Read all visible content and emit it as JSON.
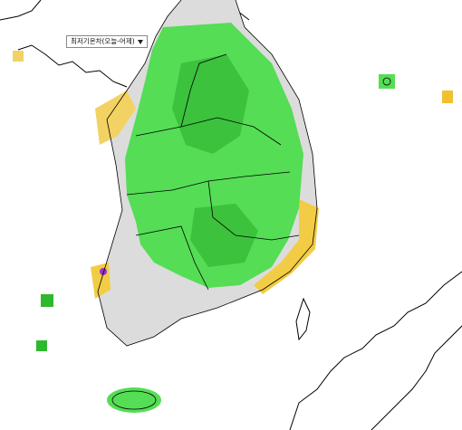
{
  "dropdown": {
    "label": "최저기온차(오늘-어제)"
  }
}
